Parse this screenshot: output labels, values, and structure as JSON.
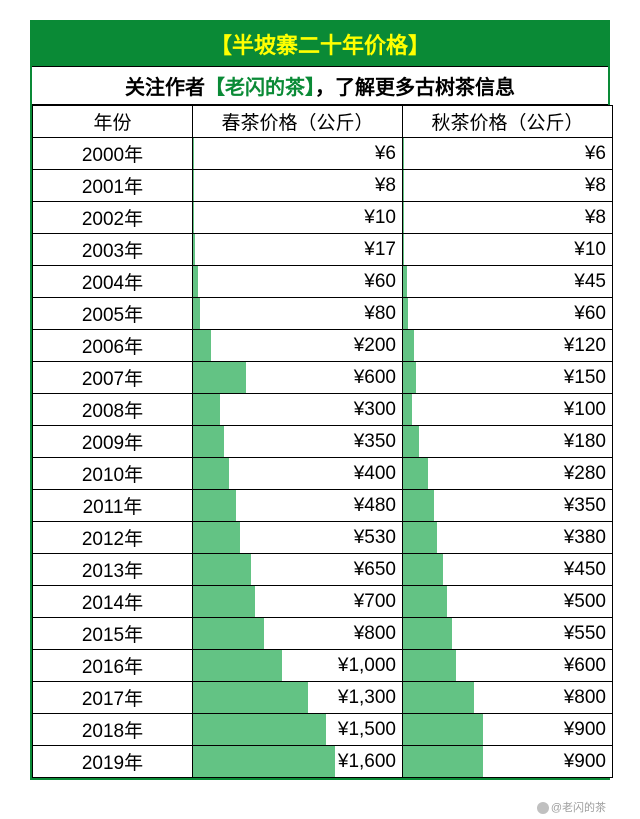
{
  "title": "【半坡寨二十年价格】",
  "subtitle_pre": "关注作者",
  "subtitle_green": "【老闪的茶】",
  "subtitle_post": "，了解更多古树茶信息",
  "columns": {
    "year": "年份",
    "spring": "春茶价格（公斤）",
    "autumn": "秋茶价格（公斤）"
  },
  "spring_max": 1600,
  "autumn_max": 1600,
  "bar_full_pct": 68,
  "rows": [
    {
      "year": "2000年",
      "spring": 6,
      "autumn": 6
    },
    {
      "year": "2001年",
      "spring": 8,
      "autumn": 8
    },
    {
      "year": "2002年",
      "spring": 10,
      "autumn": 8
    },
    {
      "year": "2003年",
      "spring": 17,
      "autumn": 10
    },
    {
      "year": "2004年",
      "spring": 60,
      "autumn": 45
    },
    {
      "year": "2005年",
      "spring": 80,
      "autumn": 60
    },
    {
      "year": "2006年",
      "spring": 200,
      "autumn": 120
    },
    {
      "year": "2007年",
      "spring": 600,
      "autumn": 150
    },
    {
      "year": "2008年",
      "spring": 300,
      "autumn": 100
    },
    {
      "year": "2009年",
      "spring": 350,
      "autumn": 180
    },
    {
      "year": "2010年",
      "spring": 400,
      "autumn": 280
    },
    {
      "year": "2011年",
      "spring": 480,
      "autumn": 350
    },
    {
      "year": "2012年",
      "spring": 530,
      "autumn": 380
    },
    {
      "year": "2013年",
      "spring": 650,
      "autumn": 450
    },
    {
      "year": "2014年",
      "spring": 700,
      "autumn": 500
    },
    {
      "year": "2015年",
      "spring": 800,
      "autumn": 550
    },
    {
      "year": "2016年",
      "spring": 1000,
      "autumn": 600
    },
    {
      "year": "2017年",
      "spring": 1300,
      "autumn": 800
    },
    {
      "year": "2018年",
      "spring": 1500,
      "autumn": 900
    },
    {
      "year": "2019年",
      "spring": 1600,
      "autumn": 900
    }
  ],
  "watermark": "@老闪的茶",
  "colors": {
    "header_bg": "#0a8a36",
    "header_text": "#ffff00",
    "bar_fill": "#63c384",
    "border": "#000000",
    "background": "#ffffff"
  }
}
